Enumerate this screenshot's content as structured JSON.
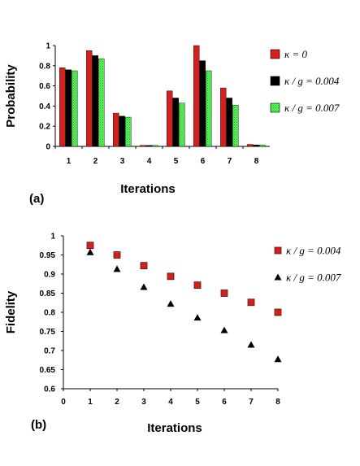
{
  "chart_data": [
    {
      "type": "bar",
      "panel_label": "(a)",
      "xlabel": "Iterations",
      "ylabel": "Probability",
      "categories": [
        "1",
        "2",
        "3",
        "4",
        "5",
        "6",
        "7",
        "8"
      ],
      "ylim": [
        0,
        1
      ],
      "yticks": [
        "0",
        "0.2",
        "0.4",
        "0.6",
        "0.8",
        "1"
      ],
      "grid": false,
      "legend_position": "right",
      "series": [
        {
          "name": "κ = 0",
          "color": "#d41f1f",
          "pattern": "solid",
          "values": [
            0.78,
            0.95,
            0.33,
            0.01,
            0.55,
            1.0,
            0.58,
            0.02
          ]
        },
        {
          "name": "κ / g = 0.004",
          "color": "#000000",
          "pattern": "solid",
          "values": [
            0.76,
            0.9,
            0.3,
            0.01,
            0.48,
            0.85,
            0.48,
            0.015
          ]
        },
        {
          "name": "κ / g = 0.007",
          "color": "#4cf04c",
          "pattern": "dotted",
          "values": [
            0.75,
            0.87,
            0.29,
            0.01,
            0.43,
            0.75,
            0.41,
            0.015
          ]
        }
      ]
    },
    {
      "type": "scatter",
      "panel_label": "(b)",
      "xlabel": "Iterations",
      "ylabel": "Fidelity",
      "xlim": [
        0,
        8
      ],
      "ylim": [
        0.6,
        1
      ],
      "xticks": [
        "0",
        "1",
        "2",
        "3",
        "4",
        "5",
        "6",
        "7",
        "8"
      ],
      "yticks": [
        "0.6",
        "0.65",
        "0.7",
        "0.75",
        "0.8",
        "0.85",
        "0.9",
        "0.95",
        "1"
      ],
      "grid": false,
      "legend_position": "right",
      "series": [
        {
          "name": "κ / g = 0.004",
          "marker": "square",
          "color": "#cc2222",
          "x": [
            1,
            2,
            3,
            4,
            5,
            6,
            7,
            8
          ],
          "y": [
            0.975,
            0.95,
            0.922,
            0.894,
            0.871,
            0.85,
            0.826,
            0.8
          ]
        },
        {
          "name": "κ / g = 0.007",
          "marker": "triangle",
          "color": "#000000",
          "x": [
            1,
            2,
            3,
            4,
            5,
            6,
            7,
            8
          ],
          "y": [
            0.957,
            0.913,
            0.866,
            0.822,
            0.786,
            0.753,
            0.715,
            0.677
          ]
        }
      ]
    }
  ]
}
